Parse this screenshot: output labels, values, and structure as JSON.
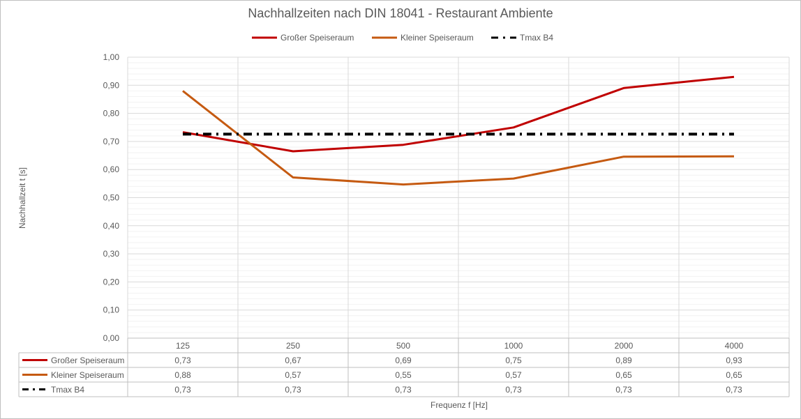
{
  "chart_data": {
    "type": "line",
    "title": "Nachhallzeiten nach DIN 18041 - Restaurant Ambiente",
    "xlabel": "Frequenz f [Hz]",
    "ylabel": "Nachhallzeit t [s]",
    "categories": [
      "125",
      "250",
      "500",
      "1000",
      "2000",
      "4000"
    ],
    "ylim": [
      0,
      1.0
    ],
    "yticks": [
      "0,00",
      "0,10",
      "0,20",
      "0,30",
      "0,40",
      "0,50",
      "0,60",
      "0,70",
      "0,80",
      "0,90",
      "1,00"
    ],
    "grid": true,
    "legend_position": "top",
    "series": [
      {
        "name": "Großer Speiseraum",
        "color": "#c00000",
        "style": "solid",
        "values": [
          0.733,
          0.665,
          0.688,
          0.75,
          0.89,
          0.93
        ],
        "labels": [
          "0,73",
          "0,67",
          "0,69",
          "0,75",
          "0,89",
          "0,93"
        ]
      },
      {
        "name": "Kleiner Speiseraum",
        "color": "#c55a11",
        "style": "solid",
        "values": [
          0.88,
          0.572,
          0.547,
          0.568,
          0.646,
          0.647
        ],
        "labels": [
          "0,88",
          "0,57",
          "0,55",
          "0,57",
          "0,65",
          "0,65"
        ]
      },
      {
        "name": "Tmax B4",
        "color": "#000000",
        "style": "dashdot",
        "values": [
          0.726,
          0.726,
          0.726,
          0.726,
          0.726,
          0.726
        ],
        "labels": [
          "0,73",
          "0,73",
          "0,73",
          "0,73",
          "0,73",
          "0,73"
        ]
      }
    ]
  }
}
